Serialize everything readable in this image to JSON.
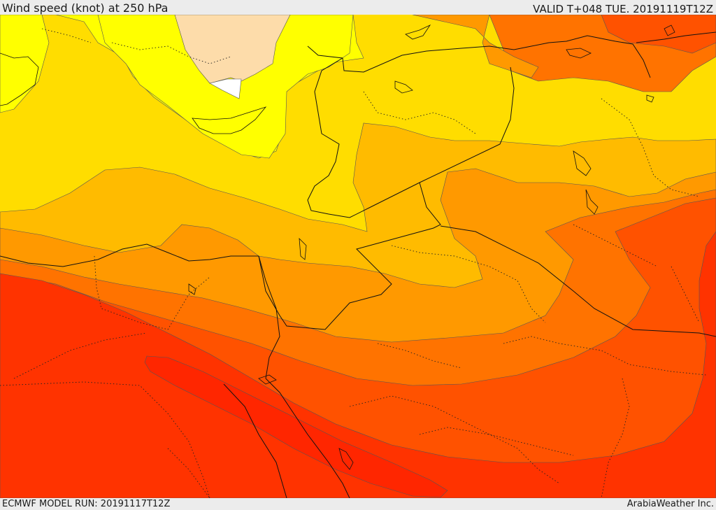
{
  "header": {
    "title": "Wind speed (knot) at 250 hPa",
    "valid_time": "VALID T+048 TUE. 20191119T12Z"
  },
  "footer": {
    "model_run": "ECMWF MODEL RUN: 20191117T12Z",
    "credit": "ArabiaWeather Inc."
  },
  "map": {
    "variable": "wind speed",
    "level": "250 hPa",
    "palette": {
      "calm_white": "#ffffff",
      "peach": "#fddcaa",
      "yellow": "#ffff00",
      "gold": "#ffdd00",
      "amber": "#ffbb00",
      "orange_light": "#ff9900",
      "orange": "#ff7300",
      "orange_red": "#ff5200",
      "red": "#ff3300",
      "red_core": "#ff2600"
    }
  }
}
